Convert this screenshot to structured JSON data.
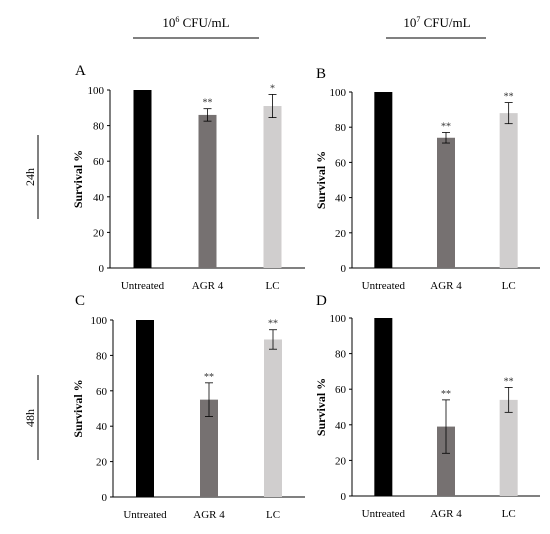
{
  "headers": {
    "col1": {
      "base": "10",
      "exp": "6",
      "unit": " CFU/mL"
    },
    "col2": {
      "base": "10",
      "exp": "7",
      "unit": " CFU/mL"
    }
  },
  "rows": {
    "row1": "24h",
    "row2": "48h"
  },
  "colors": {
    "Untreated": "#000000",
    "AGR 4": "#767171",
    "LC": "#d0cece"
  },
  "chart_data": [
    {
      "type": "bar",
      "panel": "A",
      "categories": [
        "Untreated",
        "AGR 4",
        "LC"
      ],
      "values": [
        100,
        86,
        91
      ],
      "errors": [
        0,
        3.5,
        6.5
      ],
      "significance": [
        "",
        "**",
        "*"
      ],
      "ylabel": "Survival %",
      "ylim": [
        0,
        100
      ],
      "yticks": [
        0,
        20,
        40,
        60,
        80,
        100
      ]
    },
    {
      "type": "bar",
      "panel": "B",
      "categories": [
        "Untreated",
        "AGR 4",
        "LC"
      ],
      "values": [
        100,
        74,
        88
      ],
      "errors": [
        0,
        3,
        6
      ],
      "significance": [
        "",
        "**",
        "**"
      ],
      "ylabel": "Survival %",
      "ylim": [
        0,
        100
      ],
      "yticks": [
        0,
        20,
        40,
        60,
        80,
        100
      ]
    },
    {
      "type": "bar",
      "panel": "C",
      "categories": [
        "Untreated",
        "AGR 4",
        "LC"
      ],
      "values": [
        100,
        55,
        89
      ],
      "errors": [
        0,
        9.5,
        5.5
      ],
      "significance": [
        "",
        "**",
        "**"
      ],
      "ylabel": "Survival %",
      "ylim": [
        0,
        100
      ],
      "yticks": [
        0,
        20,
        40,
        60,
        80,
        100
      ]
    },
    {
      "type": "bar",
      "panel": "D",
      "categories": [
        "Untreated",
        "AGR 4",
        "LC"
      ],
      "values": [
        100,
        39,
        54
      ],
      "errors": [
        0,
        15,
        7
      ],
      "significance": [
        "",
        "**",
        "**"
      ],
      "ylabel": "Survival %",
      "ylim": [
        0,
        100
      ],
      "yticks": [
        0,
        20,
        40,
        60,
        80,
        100
      ]
    }
  ]
}
